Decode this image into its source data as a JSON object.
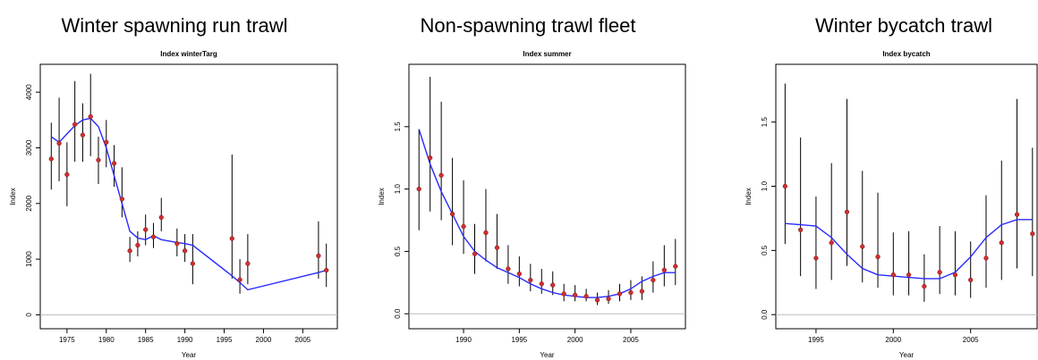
{
  "chart_data": [
    {
      "type": "errorbar",
      "title": "Winter spawning run trawl",
      "subtitle": "Index winterTarg",
      "xlabel": "Year",
      "ylabel": "Index",
      "x": [
        1973,
        1974,
        1975,
        1976,
        1977,
        1978,
        1979,
        1980,
        1981,
        1982,
        1983,
        1984,
        1985,
        1986,
        1987,
        1989,
        1990,
        1991,
        1996,
        1997,
        1998,
        2007,
        2008
      ],
      "values": [
        2800,
        3080,
        2520,
        3420,
        3230,
        3560,
        2780,
        3100,
        2720,
        2080,
        1150,
        1250,
        1530,
        1400,
        1750,
        1280,
        1150,
        920,
        1370,
        630,
        920,
        1060,
        800
      ],
      "lower": [
        2250,
        2400,
        1950,
        2750,
        2750,
        2850,
        2350,
        2650,
        2300,
        1750,
        950,
        1050,
        1250,
        1200,
        1500,
        1050,
        950,
        550,
        650,
        380,
        550,
        650,
        500
      ],
      "upper": [
        3450,
        3900,
        3100,
        4200,
        3800,
        4330,
        3200,
        3500,
        3050,
        2650,
        1400,
        1500,
        1800,
        1650,
        2100,
        1550,
        1450,
        1450,
        2880,
        1000,
        1450,
        1680,
        1280
      ],
      "fit": [
        3200,
        3100,
        3250,
        3400,
        3500,
        3530,
        3380,
        3000,
        2500,
        2000,
        1500,
        1380,
        1350,
        1420,
        1350,
        1300,
        1280,
        1250,
        700,
        580,
        450,
        760,
        800
      ],
      "xlim": [
        1971.6,
        2009.4
      ],
      "ylim": [
        -250,
        4500
      ],
      "xticks": [
        1975,
        1980,
        1985,
        1990,
        1995,
        2000,
        2005
      ],
      "yticks": [
        0,
        1000,
        2000,
        3000,
        4000
      ],
      "ref_line": 0,
      "point_color": "#d03030",
      "line_color": "#2a2aff"
    },
    {
      "type": "errorbar",
      "title": "Non-spawning trawl fleet",
      "subtitle": "Index summer",
      "xlabel": "Year",
      "ylabel": "Index",
      "x": [
        1986,
        1987,
        1988,
        1989,
        1990,
        1991,
        1992,
        1993,
        1994,
        1995,
        1996,
        1997,
        1998,
        1999,
        2000,
        2001,
        2002,
        2003,
        2004,
        2005,
        2006,
        2007,
        2008,
        2009
      ],
      "values": [
        1.0,
        1.25,
        1.11,
        0.8,
        0.7,
        0.48,
        0.65,
        0.53,
        0.36,
        0.32,
        0.27,
        0.24,
        0.23,
        0.16,
        0.15,
        0.14,
        0.11,
        0.12,
        0.16,
        0.17,
        0.18,
        0.27,
        0.35,
        0.38
      ],
      "lower": [
        0.67,
        0.82,
        0.75,
        0.55,
        0.48,
        0.32,
        0.42,
        0.36,
        0.24,
        0.22,
        0.18,
        0.16,
        0.15,
        0.1,
        0.1,
        0.1,
        0.07,
        0.08,
        0.1,
        0.11,
        0.11,
        0.17,
        0.22,
        0.23
      ],
      "upper": [
        1.48,
        1.9,
        1.7,
        1.25,
        1.07,
        0.72,
        1.0,
        0.8,
        0.55,
        0.46,
        0.4,
        0.36,
        0.34,
        0.24,
        0.23,
        0.2,
        0.17,
        0.19,
        0.24,
        0.27,
        0.3,
        0.42,
        0.55,
        0.6
      ],
      "fit": [
        1.48,
        1.2,
        0.98,
        0.8,
        0.62,
        0.5,
        0.43,
        0.37,
        0.33,
        0.29,
        0.24,
        0.2,
        0.17,
        0.15,
        0.14,
        0.13,
        0.13,
        0.14,
        0.16,
        0.2,
        0.26,
        0.3,
        0.33,
        0.33
      ],
      "xlim": [
        1985.1,
        2009.9
      ],
      "ylim": [
        -0.12,
        2.0
      ],
      "xticks": [
        1990,
        1995,
        2000,
        2005
      ],
      "yticks": [
        {
          "value": 0,
          "label": "0.0"
        },
        0.5,
        {
          "value": 1,
          "label": "1.0"
        },
        1.5
      ],
      "ref_line": 0,
      "point_color": "#d03030",
      "line_color": "#2a2aff"
    },
    {
      "type": "errorbar",
      "title": "Winter bycatch trawl",
      "subtitle": "Index bycatch",
      "xlabel": "Year",
      "ylabel": "Index",
      "x": [
        1993,
        1994,
        1995,
        1996,
        1997,
        1998,
        1999,
        2000,
        2001,
        2002,
        2003,
        2004,
        2005,
        2006,
        2007,
        2008,
        2009
      ],
      "values": [
        1.0,
        0.66,
        0.44,
        0.56,
        0.8,
        0.53,
        0.45,
        0.31,
        0.31,
        0.22,
        0.33,
        0.31,
        0.27,
        0.44,
        0.56,
        0.78,
        0.63
      ],
      "lower": [
        0.55,
        0.3,
        0.2,
        0.27,
        0.38,
        0.25,
        0.21,
        0.15,
        0.15,
        0.1,
        0.16,
        0.15,
        0.13,
        0.21,
        0.27,
        0.36,
        0.3
      ],
      "upper": [
        1.8,
        1.38,
        0.92,
        1.18,
        1.68,
        1.12,
        0.95,
        0.64,
        0.65,
        0.47,
        0.69,
        0.65,
        0.57,
        0.93,
        1.2,
        1.68,
        1.3
      ],
      "fit": [
        0.71,
        0.7,
        0.69,
        0.6,
        0.47,
        0.36,
        0.31,
        0.3,
        0.29,
        0.28,
        0.28,
        0.33,
        0.45,
        0.6,
        0.7,
        0.74,
        0.74
      ],
      "xlim": [
        1992.4,
        2009.3
      ],
      "ylim": [
        -0.11,
        1.95
      ],
      "xticks": [
        1995,
        2000,
        2005
      ],
      "yticks": [
        {
          "value": 0,
          "label": "0.0"
        },
        0.5,
        {
          "value": 1,
          "label": "1.0"
        },
        1.5
      ],
      "ref_line": 0,
      "point_color": "#d03030",
      "line_color": "#2a2aff"
    }
  ]
}
